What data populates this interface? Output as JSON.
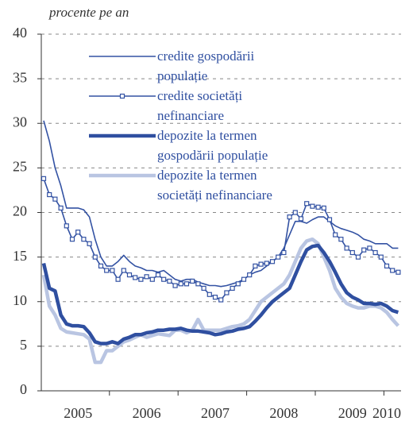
{
  "chart_data": {
    "type": "line",
    "y_label": "procente pe an",
    "categories": [
      null,
      null,
      null,
      null,
      null,
      null,
      "2005",
      null,
      null,
      null,
      null,
      null,
      null,
      null,
      null,
      null,
      null,
      null,
      "2006",
      null,
      null,
      null,
      null,
      null,
      null,
      null,
      null,
      null,
      null,
      null,
      "2007",
      null,
      null,
      null,
      null,
      null,
      null,
      null,
      null,
      null,
      null,
      null,
      "2008",
      null,
      null,
      null,
      null,
      null,
      null,
      null,
      null,
      null,
      null,
      null,
      "2009",
      null,
      null,
      null,
      null,
      null,
      "2010",
      null,
      null
    ],
    "ylim": [
      0,
      40
    ],
    "yticks": [
      0,
      5,
      10,
      15,
      20,
      25,
      30,
      35,
      40
    ],
    "grid": true,
    "series": [
      {
        "name": "credite gospodării populație",
        "color": "#3352a3",
        "line_width": 1.6,
        "values": [
          30.3,
          28,
          25,
          23,
          20.5,
          20.5,
          20.5,
          20.3,
          19.5,
          17,
          15,
          14,
          14,
          14.5,
          15.2,
          14.5,
          14,
          13.8,
          13.5,
          13.5,
          13.3,
          13.5,
          13,
          12.5,
          12.3,
          12.5,
          12.5,
          12.2,
          12,
          11.8,
          11.8,
          11.7,
          11.8,
          12,
          12.2,
          12.5,
          13,
          13.3,
          13.5,
          14,
          14.5,
          15,
          16,
          17.5,
          19,
          19,
          18.8,
          19.2,
          19.5,
          19.5,
          19,
          18.5,
          18.2,
          18,
          17.8,
          17.5,
          17,
          16.8,
          16.5,
          16.5,
          16.5,
          16,
          16
        ]
      },
      {
        "name": "credite societăți nefinanciare",
        "color": "#3352a3",
        "line_width": 1.6,
        "marker": "square",
        "values": [
          23.8,
          22,
          21.5,
          20.5,
          18.5,
          17,
          17.8,
          17,
          16.5,
          15,
          14,
          13.5,
          13.5,
          12.5,
          13.5,
          13,
          12.7,
          12.5,
          12.8,
          12.5,
          13,
          12.5,
          12.3,
          11.8,
          12,
          12,
          12.3,
          12,
          11.5,
          10.8,
          10.5,
          10.2,
          11,
          11.5,
          12,
          12.5,
          13,
          14,
          14.2,
          14.3,
          14.5,
          15,
          15.5,
          19.5,
          20,
          19.3,
          21,
          20.7,
          20.6,
          20.5,
          19.2,
          17.5,
          17,
          16,
          15.5,
          15,
          15.8,
          16,
          15.5,
          15,
          14,
          13.5,
          13.3
        ]
      },
      {
        "name": "depozite la termen gospodării populație",
        "color": "#2f4fa0",
        "line_width": 4.5,
        "values": [
          14.3,
          11.5,
          11.2,
          8.5,
          7.5,
          7.3,
          7.3,
          7.2,
          6.5,
          5.5,
          5.3,
          5.3,
          5.5,
          5.3,
          5.8,
          6,
          6.3,
          6.3,
          6.5,
          6.6,
          6.8,
          6.8,
          6.9,
          6.9,
          7,
          6.8,
          6.7,
          6.7,
          6.6,
          6.5,
          6.3,
          6.4,
          6.6,
          6.7,
          6.9,
          7,
          7.2,
          7.8,
          8.5,
          9.3,
          10,
          10.5,
          11,
          11.5,
          13,
          14.5,
          15.8,
          16.2,
          16.3,
          15.5,
          14.5,
          13.3,
          12,
          11,
          10.5,
          10.2,
          9.8,
          9.8,
          9.7,
          9.8,
          9.5,
          9,
          8.8
        ]
      },
      {
        "name": "depozite la termen societăți nefinanciare",
        "color": "#b9c5e2",
        "line_width": 4.5,
        "values": [
          13,
          9.5,
          8.5,
          7,
          6.6,
          6.5,
          6.4,
          6.3,
          5.8,
          3.2,
          3.2,
          4.5,
          4.5,
          5,
          5.5,
          5.7,
          6,
          6.3,
          6,
          6.2,
          6.4,
          6.3,
          6.2,
          6.8,
          6.8,
          6.5,
          6.8,
          8,
          6.8,
          6.8,
          6.8,
          6.8,
          7,
          7.2,
          7.3,
          7.5,
          8,
          9,
          10,
          10.5,
          11,
          11.5,
          12,
          13,
          14.5,
          16,
          16.8,
          17,
          16.5,
          15,
          13.5,
          11.5,
          10.5,
          9.8,
          9.5,
          9.3,
          9.3,
          9.5,
          9.5,
          9.3,
          8.8,
          8,
          7.3
        ]
      }
    ]
  }
}
